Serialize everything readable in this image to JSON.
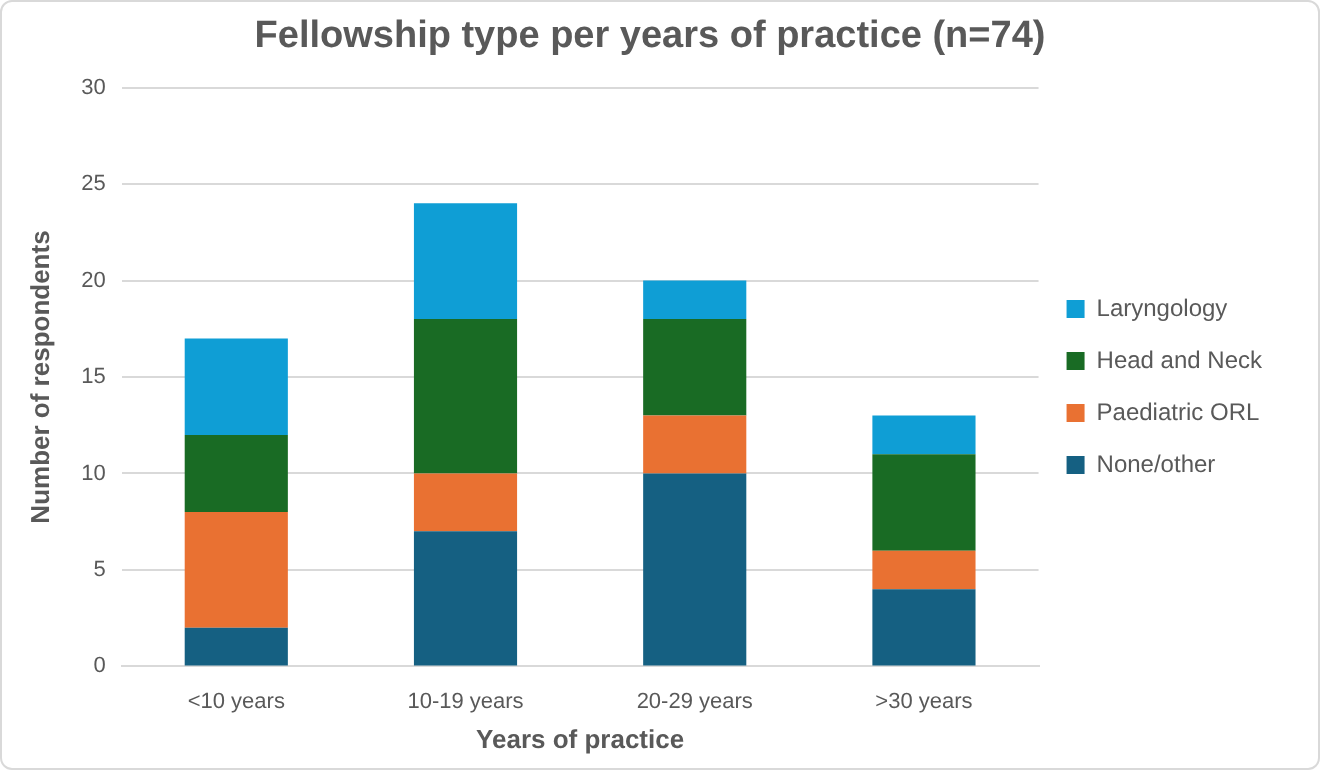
{
  "chart_data": {
    "type": "bar",
    "title": "Fellowship type per years of practice (n=74)",
    "xlabel": "Years of practice",
    "ylabel": "Number of respondents",
    "categories": [
      "<10 years",
      "10-19 years",
      "20-29 years",
      ">30 years"
    ],
    "stacked": true,
    "series": [
      {
        "name": "None/other",
        "color": "#156082",
        "values": [
          2,
          7,
          10,
          4
        ]
      },
      {
        "name": "Paediatric ORL",
        "color": "#e97132",
        "values": [
          6,
          3,
          3,
          2
        ]
      },
      {
        "name": "Head and Neck",
        "color": "#196b24",
        "values": [
          4,
          8,
          5,
          5
        ]
      },
      {
        "name": "Laryngology",
        "color": "#0f9ed5",
        "values": [
          5,
          6,
          2,
          2
        ]
      }
    ],
    "ylim": [
      0,
      30
    ],
    "yticks": [
      0,
      5,
      10,
      15,
      20,
      25,
      30
    ],
    "grid": "y",
    "legend": "right"
  }
}
